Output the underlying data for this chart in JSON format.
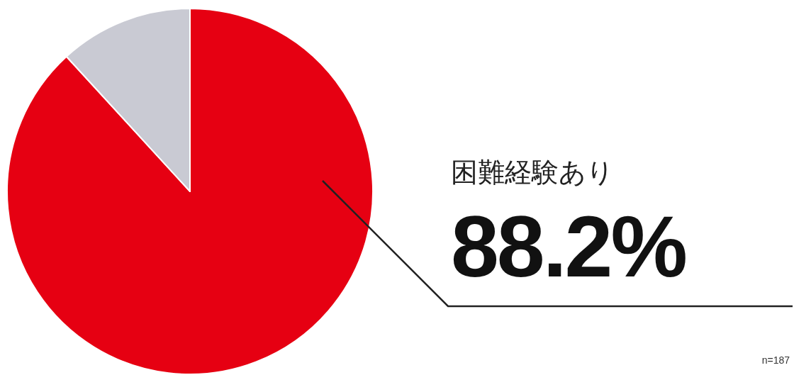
{
  "chart_data": {
    "type": "pie",
    "categories": [
      "困難経験あり",
      null
    ],
    "values": [
      88.2,
      11.8
    ],
    "colors": [
      "#e60012",
      "#c9cad3"
    ],
    "value_labels": [
      "88.2%",
      null
    ],
    "annotations": [
      "n=187"
    ]
  }
}
